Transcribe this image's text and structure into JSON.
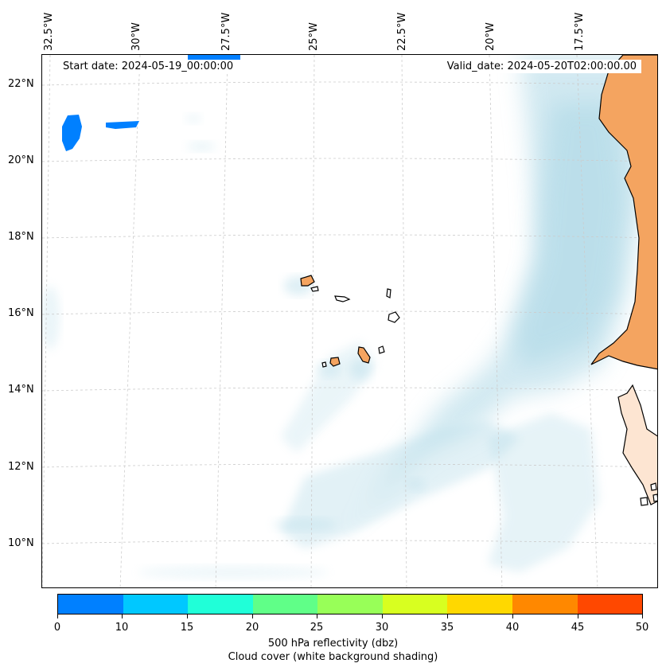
{
  "map": {
    "start_date": "Start date: 2024-05-19_00:00:00",
    "valid_date": "Valid_date: 2024-05-20T02:00:00.00",
    "longitude_labels": [
      "32.5°W",
      "30°W",
      "27.5°W",
      "25°W",
      "22.5°W",
      "20°W",
      "17.5°W"
    ],
    "latitude_labels": [
      "22°N",
      "20°N",
      "18°N",
      "16°N",
      "14°N",
      "12°N",
      "10°N"
    ],
    "colors": {
      "cloud": "#add8e6",
      "land": "#f4a460",
      "coastline": "#000000",
      "gridline": "#cccccc"
    }
  },
  "colorbar": {
    "ticks": [
      "0",
      "10",
      "15",
      "20",
      "25",
      "30",
      "35",
      "40",
      "45",
      "50"
    ],
    "colors": [
      "#0080ff",
      "#00c8ff",
      "#20ffd8",
      "#60ff88",
      "#98ff58",
      "#d8ff20",
      "#ffd800",
      "#ff8800",
      "#ff4800"
    ],
    "title_line1": "500 hPa reflectivity (dbz)",
    "title_line2": "Cloud cover (white background shading)"
  }
}
